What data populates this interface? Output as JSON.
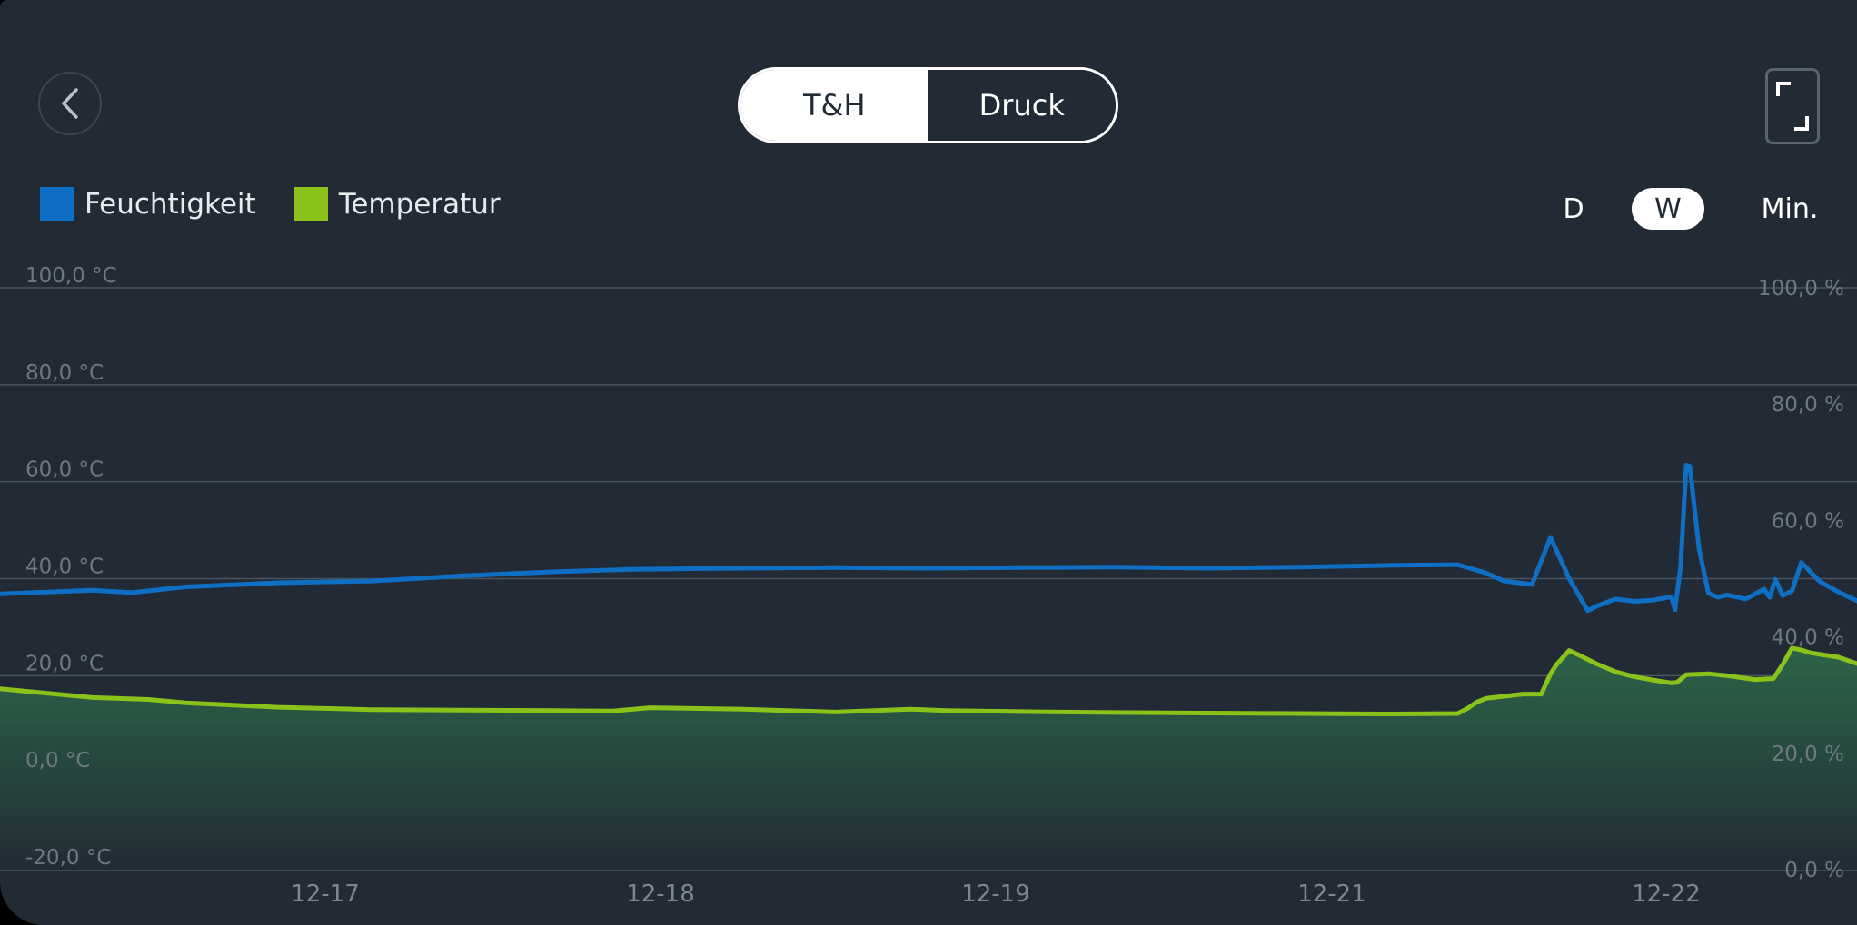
{
  "header": {
    "tabs": [
      {
        "label": "T&H",
        "active": true
      },
      {
        "label": "Druck",
        "active": false
      }
    ]
  },
  "icons": {
    "back": "chevron-left-icon",
    "fullscreen": "fullscreen-icon"
  },
  "legend": [
    {
      "label": "Feuchtigkeit",
      "color": "#0e6fc4"
    },
    {
      "label": "Temperatur",
      "color": "#8ac11a"
    }
  ],
  "time_range": {
    "options": [
      "D",
      "W",
      "Min."
    ],
    "selected": "W"
  },
  "chart_data": {
    "type": "line",
    "x_tick_labels": [
      "12-17",
      "12-18",
      "12-19",
      "12-21",
      "12-22"
    ],
    "y_left": {
      "unit": "°C",
      "ylim": [
        -20,
        100
      ],
      "ticks": [
        "100,0 °C",
        "80,0 °C",
        "60,0 °C",
        "40,0 °C",
        "20,0 °C",
        "0,0 °C",
        "-20,0 °C"
      ]
    },
    "y_right": {
      "unit": "%",
      "ylim": [
        0,
        100
      ],
      "ticks": [
        "100,0 %",
        "80,0 %",
        "60,0 %",
        "40,0 %",
        "20,0 %",
        "0,0 %"
      ]
    },
    "grid": true,
    "series": [
      {
        "name": "Feuchtigkeit",
        "axis": "right",
        "color": "#0e6fc4",
        "x": [
          0.0,
          0.05,
          0.071,
          0.1,
          0.15,
          0.2,
          0.25,
          0.3,
          0.34,
          0.4,
          0.45,
          0.5,
          0.55,
          0.6,
          0.65,
          0.7,
          0.75,
          0.785,
          0.8,
          0.81,
          0.825,
          0.835,
          0.845,
          0.855,
          0.86,
          0.87,
          0.88,
          0.89,
          0.9,
          0.902,
          0.905,
          0.908,
          0.91,
          0.915,
          0.92,
          0.925,
          0.93,
          0.94,
          0.95,
          0.953,
          0.956,
          0.96,
          0.965,
          0.97,
          0.98,
          0.99,
          1.0
        ],
        "values": [
          47.4,
          48.0,
          47.6,
          48.6,
          49.3,
          49.6,
          50.5,
          51.2,
          51.6,
          51.8,
          51.9,
          51.8,
          51.9,
          52.0,
          51.8,
          52.0,
          52.3,
          52.4,
          51.0,
          49.6,
          49.0,
          57.1,
          50.0,
          44.5,
          45.3,
          46.5,
          46.1,
          46.3,
          46.9,
          44.7,
          52.0,
          69.5,
          69.3,
          55.0,
          47.5,
          46.8,
          47.2,
          46.5,
          48.2,
          46.8,
          49.9,
          47.1,
          47.9,
          52.8,
          49.5,
          47.7,
          46.2
        ]
      },
      {
        "name": "Temperatur",
        "axis": "left",
        "color": "#8ac11a",
        "x": [
          0.0,
          0.05,
          0.08,
          0.1,
          0.15,
          0.2,
          0.25,
          0.3,
          0.33,
          0.35,
          0.4,
          0.45,
          0.49,
          0.51,
          0.55,
          0.6,
          0.65,
          0.7,
          0.75,
          0.785,
          0.79,
          0.795,
          0.8,
          0.82,
          0.83,
          0.835,
          0.838,
          0.845,
          0.85,
          0.86,
          0.87,
          0.88,
          0.89,
          0.9,
          0.903,
          0.908,
          0.92,
          0.93,
          0.945,
          0.955,
          0.96,
          0.965,
          0.97,
          0.975,
          0.99,
          1.0
        ],
        "values": [
          17.3,
          15.5,
          15.1,
          14.4,
          13.5,
          13.0,
          12.9,
          12.8,
          12.7,
          13.4,
          13.1,
          12.5,
          13.1,
          12.8,
          12.6,
          12.4,
          12.3,
          12.2,
          12.1,
          12.2,
          13.2,
          14.5,
          15.3,
          16.2,
          16.2,
          20.4,
          22.2,
          25.2,
          24.3,
          22.4,
          20.8,
          19.8,
          19.1,
          18.5,
          18.6,
          20.2,
          20.4,
          20.0,
          19.2,
          19.4,
          22.3,
          25.7,
          25.3,
          24.7,
          23.8,
          22.5
        ]
      }
    ]
  }
}
